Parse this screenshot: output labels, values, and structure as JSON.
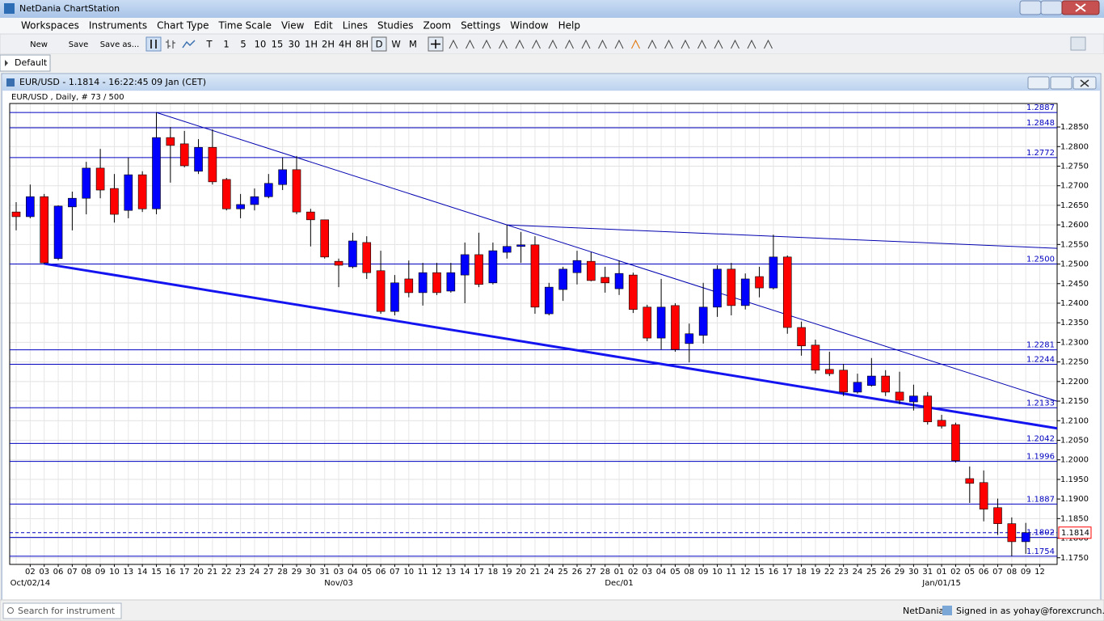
{
  "window": {
    "title": "NetDania ChartStation"
  },
  "menu": [
    "Workspaces",
    "Instruments",
    "Chart Type",
    "Time Scale",
    "View",
    "Edit",
    "Lines",
    "Studies",
    "Zoom",
    "Settings",
    "Window",
    "Help"
  ],
  "toolbar": {
    "file": [
      "New",
      "Save",
      "Save as..."
    ],
    "timescales": [
      "T",
      "1",
      "5",
      "10",
      "15",
      "30",
      "1H",
      "2H",
      "4H",
      "8H",
      "D",
      "W",
      "M"
    ],
    "selected_timescale": "D"
  },
  "tabs": [
    "Default"
  ],
  "chart_window": {
    "title": "EUR/USD - 1.1814 - 16:22:45  09 Jan (CET)"
  },
  "chart_data": {
    "type": "candlestick",
    "info": "EUR/USD , Daily, # 73 / 500",
    "categories": [
      null,
      "02",
      "03",
      "06",
      "07",
      "08",
      "09",
      "10",
      "13",
      "14",
      "15",
      "16",
      "17",
      "20",
      "21",
      "22",
      "23",
      "24",
      "27",
      "28",
      "29",
      "30",
      "31",
      "03",
      "04",
      "05",
      "06",
      "07",
      "10",
      "11",
      "12",
      "13",
      "14",
      "17",
      "18",
      "19",
      "20",
      "21",
      "24",
      "25",
      "26",
      "27",
      "28",
      "01",
      "02",
      "03",
      "04",
      "05",
      "08",
      "09",
      "10",
      "11",
      "12",
      "15",
      "16",
      "17",
      "18",
      "19",
      "22",
      "23",
      "24",
      "25",
      "26",
      "29",
      "30",
      "31",
      "01",
      "02",
      "05",
      "06",
      "07",
      "08",
      "09",
      "12"
    ],
    "x_major_labels": [
      {
        "at": 1,
        "label": "Oct/02/14"
      },
      {
        "at": 23,
        "label": "Nov/03"
      },
      {
        "at": 43,
        "label": "Dec/01"
      },
      {
        "at": 66,
        "label": "Jan/01/15"
      }
    ],
    "open": [
      1.2633,
      1.2621,
      1.2672,
      1.2514,
      1.2646,
      1.2668,
      1.2745,
      1.2693,
      1.2637,
      1.2728,
      1.2641,
      1.2823,
      1.2807,
      1.2737,
      1.2798,
      1.2716,
      1.2641,
      1.2652,
      1.2672,
      1.2703,
      1.2741,
      1.2633,
      1.2613,
      1.2507,
      1.2493,
      1.2555,
      1.2483,
      1.2379,
      1.2462,
      1.2427,
      1.2478,
      1.2431,
      1.2472,
      1.2524,
      1.2452,
      1.253,
      1.2545,
      1.2549,
      1.2373,
      1.2435,
      1.2478,
      1.2507,
      1.2466,
      1.2437,
      1.2472,
      1.239,
      1.2311,
      1.2394,
      1.2297,
      1.2318,
      1.239,
      1.2487,
      1.2394,
      1.2468,
      1.2439,
      1.2518,
      1.2338,
      1.2293,
      1.2231,
      1.2229,
      1.2173,
      1.219,
      1.2214,
      1.2173,
      1.2148,
      1.2163,
      1.2101,
      1.209,
      1.1952,
      1.1942,
      1.1878,
      1.1837,
      1.1791,
      null
    ],
    "high": [
      1.2658,
      1.2703,
      1.2679,
      1.265,
      1.2685,
      1.2761,
      1.2794,
      1.273,
      1.2772,
      1.2737,
      1.2887,
      1.285,
      1.284,
      1.2819,
      1.2844,
      1.272,
      1.2679,
      1.2693,
      1.273,
      1.2772,
      1.2776,
      1.2641,
      1.2613,
      1.2514,
      1.258,
      1.2571,
      1.2534,
      1.2472,
      1.2509,
      1.2503,
      1.2503,
      1.2503,
      1.2555,
      1.258,
      1.2555,
      1.26,
      1.2582,
      1.2571,
      1.2452,
      1.2493,
      1.2534,
      1.253,
      1.2493,
      1.2509,
      1.2478,
      1.2396,
      1.2462,
      1.24,
      1.2348,
      1.2452,
      1.2497,
      1.2503,
      1.2476,
      1.2493,
      1.2575,
      1.2522,
      1.2353,
      1.2307,
      1.2276,
      1.2245,
      1.222,
      1.226,
      1.2229,
      1.2225,
      1.2192,
      1.2173,
      1.2115,
      1.2095,
      1.1983,
      1.1973,
      1.1901,
      1.1853,
      1.1839,
      null
    ],
    "low": [
      1.2586,
      1.2617,
      1.2501,
      1.251,
      1.2586,
      1.2627,
      1.2668,
      1.2606,
      1.2617,
      1.2633,
      1.2627,
      1.2708,
      1.2747,
      1.273,
      1.2703,
      1.2637,
      1.2617,
      1.2637,
      1.2668,
      1.2689,
      1.2627,
      1.2545,
      1.2514,
      1.2441,
      1.2489,
      1.2462,
      1.2373,
      1.2369,
      1.2415,
      1.2394,
      1.2421,
      1.2427,
      1.24,
      1.2441,
      1.2448,
      1.2514,
      1.2503,
      1.2373,
      1.2369,
      1.2406,
      1.2448,
      1.2456,
      1.2427,
      1.2421,
      1.2375,
      1.2303,
      1.2282,
      1.2276,
      1.2249,
      1.2297,
      1.2365,
      1.2369,
      1.2384,
      1.2415,
      1.2435,
      1.2322,
      1.2266,
      1.222,
      1.2214,
      1.2163,
      1.2169,
      1.2187,
      1.2163,
      1.2142,
      1.2126,
      1.209,
      1.208,
      1.1993,
      1.189,
      1.1843,
      1.1808,
      1.1754,
      1.176,
      null
    ],
    "close": [
      1.2621,
      1.2672,
      1.2503,
      1.2648,
      1.2668,
      1.2745,
      1.2689,
      1.2627,
      1.2728,
      1.2641,
      1.2823,
      1.2803,
      1.2751,
      1.2798,
      1.271,
      1.2641,
      1.2652,
      1.2672,
      1.2706,
      1.2741,
      1.2633,
      1.2613,
      1.2518,
      1.2497,
      1.2559,
      1.2478,
      1.2379,
      1.2452,
      1.2427,
      1.2478,
      1.2427,
      1.2478,
      1.2524,
      1.2448,
      1.2534,
      1.2545,
      1.2549,
      1.239,
      1.2441,
      1.2487,
      1.2509,
      1.2458,
      1.2452,
      1.2476,
      1.2384,
      1.2311,
      1.239,
      1.2282,
      1.2322,
      1.239,
      1.2487,
      1.2394,
      1.2462,
      1.2439,
      1.2518,
      1.2338,
      1.2291,
      1.2229,
      1.222,
      1.2173,
      1.2198,
      1.2214,
      1.2173,
      1.2152,
      1.2163,
      1.2097,
      1.2086,
      1.1998,
      1.194,
      1.1874,
      1.1837,
      1.1791,
      1.1814,
      null
    ],
    "up_color": "#0000ff",
    "down_color": "#ff0000",
    "ylim": [
      1.1733,
      1.291
    ],
    "yticks": [
      {
        "value": 1.175,
        "label": "1.1750"
      },
      {
        "value": 1.18,
        "label": "1.1800"
      },
      {
        "value": 1.185,
        "label": "1.1850"
      },
      {
        "value": 1.19,
        "label": "1.1900"
      },
      {
        "value": 1.195,
        "label": "1.1950"
      },
      {
        "value": 1.2,
        "label": "1.2000"
      },
      {
        "value": 1.205,
        "label": "1.2050"
      },
      {
        "value": 1.21,
        "label": "1.2100"
      },
      {
        "value": 1.215,
        "label": "1.2150"
      },
      {
        "value": 1.22,
        "label": "1.2200"
      },
      {
        "value": 1.225,
        "label": "1.2250"
      },
      {
        "value": 1.23,
        "label": "1.2300"
      },
      {
        "value": 1.235,
        "label": "1.2350"
      },
      {
        "value": 1.24,
        "label": "1.2400"
      },
      {
        "value": 1.245,
        "label": "1.2450"
      },
      {
        "value": 1.25,
        "label": "1.2500"
      },
      {
        "value": 1.255,
        "label": "1.2550"
      },
      {
        "value": 1.26,
        "label": "1.2600"
      },
      {
        "value": 1.265,
        "label": "1.2650"
      },
      {
        "value": 1.27,
        "label": "1.2700"
      },
      {
        "value": 1.275,
        "label": "1.2750"
      },
      {
        "value": 1.28,
        "label": "1.2800"
      },
      {
        "value": 1.285,
        "label": "1.2850"
      }
    ],
    "grid": true,
    "levels": [
      1.2887,
      1.2848,
      1.2772,
      {
        "value": 1.25,
        "label": "1.2500"
      },
      1.2281,
      1.2244,
      1.2133,
      1.2042,
      1.1996,
      1.1887,
      1.1802,
      1.1754
    ],
    "level_color": "#0000c0",
    "current_price": 1.1814,
    "trendlines": [
      {
        "points": [
          [
            2,
            1.2501
          ],
          [
            47,
            1.2239
          ]
        ],
        "line_width": 3,
        "color": "#1414f0"
      },
      {
        "points": [
          [
            10,
            1.2887
          ],
          [
            35,
            1.26
          ]
        ],
        "line_width": 1,
        "color": "#0000b0"
      },
      {
        "points": [
          [
            35,
            1.26
          ],
          [
            54,
            1.2571
          ]
        ],
        "line_width": 1,
        "color": "#0000b0"
      }
    ]
  },
  "status_bar": {
    "search": "Search for instrument",
    "provider": "NetDania",
    "user": "Signed in as yohay@forexcrunch.com"
  }
}
